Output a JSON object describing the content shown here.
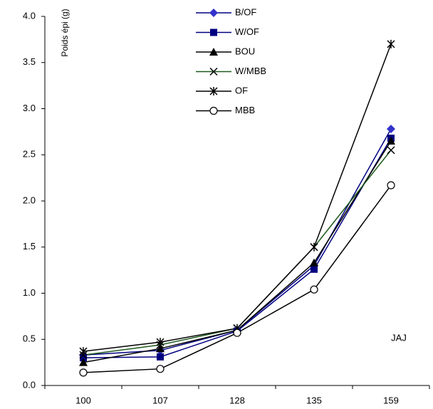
{
  "chart_data": {
    "type": "line",
    "y_label": "Poids épi (g)",
    "x_label": "JAJ",
    "categories": [
      "100",
      "107",
      "128",
      "135",
      "159"
    ],
    "series": [
      {
        "name": "B/OF",
        "color": "#000080",
        "marker_color": "#3333cc",
        "marker": "diamond",
        "values": [
          0.33,
          0.38,
          0.6,
          1.3,
          2.78
        ]
      },
      {
        "name": "W/OF",
        "color": "#000080",
        "marker_color": "#000080",
        "marker": "square",
        "values": [
          0.3,
          0.31,
          0.59,
          1.26,
          2.68
        ]
      },
      {
        "name": "BOU",
        "color": "#000000",
        "marker_color": "#000000",
        "marker": "triangle",
        "values": [
          0.25,
          0.4,
          0.6,
          1.33,
          2.65
        ]
      },
      {
        "name": "W/MBB",
        "color": "#1e5a1e",
        "marker_color": "#000000",
        "marker": "x",
        "values": [
          0.33,
          0.44,
          0.62,
          1.5,
          2.55
        ]
      },
      {
        "name": "OF",
        "color": "#000000",
        "marker_color": "#000000",
        "marker": "star",
        "values": [
          0.37,
          0.47,
          0.62,
          1.5,
          3.7
        ]
      },
      {
        "name": "MBB",
        "color": "#000000",
        "marker_color": "#000000",
        "marker": "circle",
        "values": [
          0.14,
          0.18,
          0.57,
          1.04,
          2.17
        ]
      }
    ],
    "ylim": [
      0,
      4
    ],
    "yticks": [
      {
        "value": 0,
        "label": "0.0"
      },
      0.5,
      {
        "value": 1,
        "label": "1.0"
      },
      1.5,
      {
        "value": 2,
        "label": "2.0"
      },
      2.5,
      {
        "value": 3,
        "label": "3.0"
      },
      3.5,
      {
        "value": 4,
        "label": "4.0"
      }
    ],
    "grid": false,
    "legend": "top"
  }
}
